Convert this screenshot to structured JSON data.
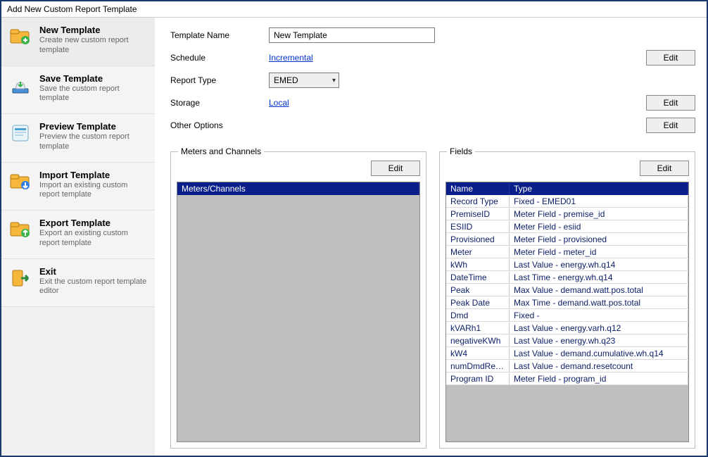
{
  "window": {
    "title": "Add New Custom Report Template"
  },
  "sidebar": {
    "items": [
      {
        "title": "New Template",
        "desc": "Create new custom report template",
        "icon": "folder-new"
      },
      {
        "title": "Save Template",
        "desc": "Save the custom report template",
        "icon": "cloud-save"
      },
      {
        "title": "Preview Template",
        "desc": "Preview the custom report template",
        "icon": "preview"
      },
      {
        "title": "Import Template",
        "desc": "Import an existing custom report template",
        "icon": "folder-import"
      },
      {
        "title": "Export Template",
        "desc": "Export an existing custom report template",
        "icon": "folder-export"
      },
      {
        "title": "Exit",
        "desc": "Exit the custom report template editor",
        "icon": "exit"
      }
    ]
  },
  "form": {
    "template_name": {
      "label": "Template Name",
      "value": "New Template"
    },
    "schedule": {
      "label": "Schedule",
      "link": "Incremental",
      "edit": "Edit"
    },
    "report_type": {
      "label": "Report Type",
      "selected": "EMED"
    },
    "storage": {
      "label": "Storage",
      "link": "Local",
      "edit": "Edit"
    },
    "other_options": {
      "label": "Other Options",
      "edit": "Edit"
    }
  },
  "meters_panel": {
    "legend": "Meters and Channels",
    "edit": "Edit",
    "header": "Meters/Channels",
    "rows": []
  },
  "fields_panel": {
    "legend": "Fields",
    "edit": "Edit",
    "columns": {
      "name": "Name",
      "type": "Type"
    },
    "rows": [
      {
        "name": "Record Type",
        "type": "Fixed - EMED01"
      },
      {
        "name": "PremiseID",
        "type": "Meter Field - premise_id"
      },
      {
        "name": "ESIID",
        "type": "Meter Field - esiid"
      },
      {
        "name": "Provisioned",
        "type": "Meter Field - provisioned"
      },
      {
        "name": "Meter",
        "type": "Meter Field - meter_id"
      },
      {
        "name": "kWh",
        "type": "Last Value - energy.wh.q14"
      },
      {
        "name": "DateTime",
        "type": "Last Time - energy.wh.q14"
      },
      {
        "name": "Peak",
        "type": "Max Value - demand.watt.pos.total"
      },
      {
        "name": "Peak Date",
        "type": "Max Time - demand.watt.pos.total"
      },
      {
        "name": "Dmd",
        "type": "Fixed -"
      },
      {
        "name": "kVARh1",
        "type": "Last Value - energy.varh.q12"
      },
      {
        "name": "negativeKWh",
        "type": "Last Value - energy.wh.q23"
      },
      {
        "name": "kW4",
        "type": "Last Value - demand.cumulative.wh.q14"
      },
      {
        "name": "numDmdReset",
        "type": "Last Value - demand.resetcount"
      },
      {
        "name": "Program ID",
        "type": "Meter Field - program_id"
      }
    ]
  },
  "colors": {
    "window_border": "#1a3a6e",
    "sidebar_bg": "#f0f0f0",
    "grid_header_bg": "#0a1f8a",
    "grid_header_fg": "#ffffff",
    "grid_body_disabled_bg": "#bfbfbf",
    "link": "#0033cc",
    "row_text": "#0b1e66"
  }
}
